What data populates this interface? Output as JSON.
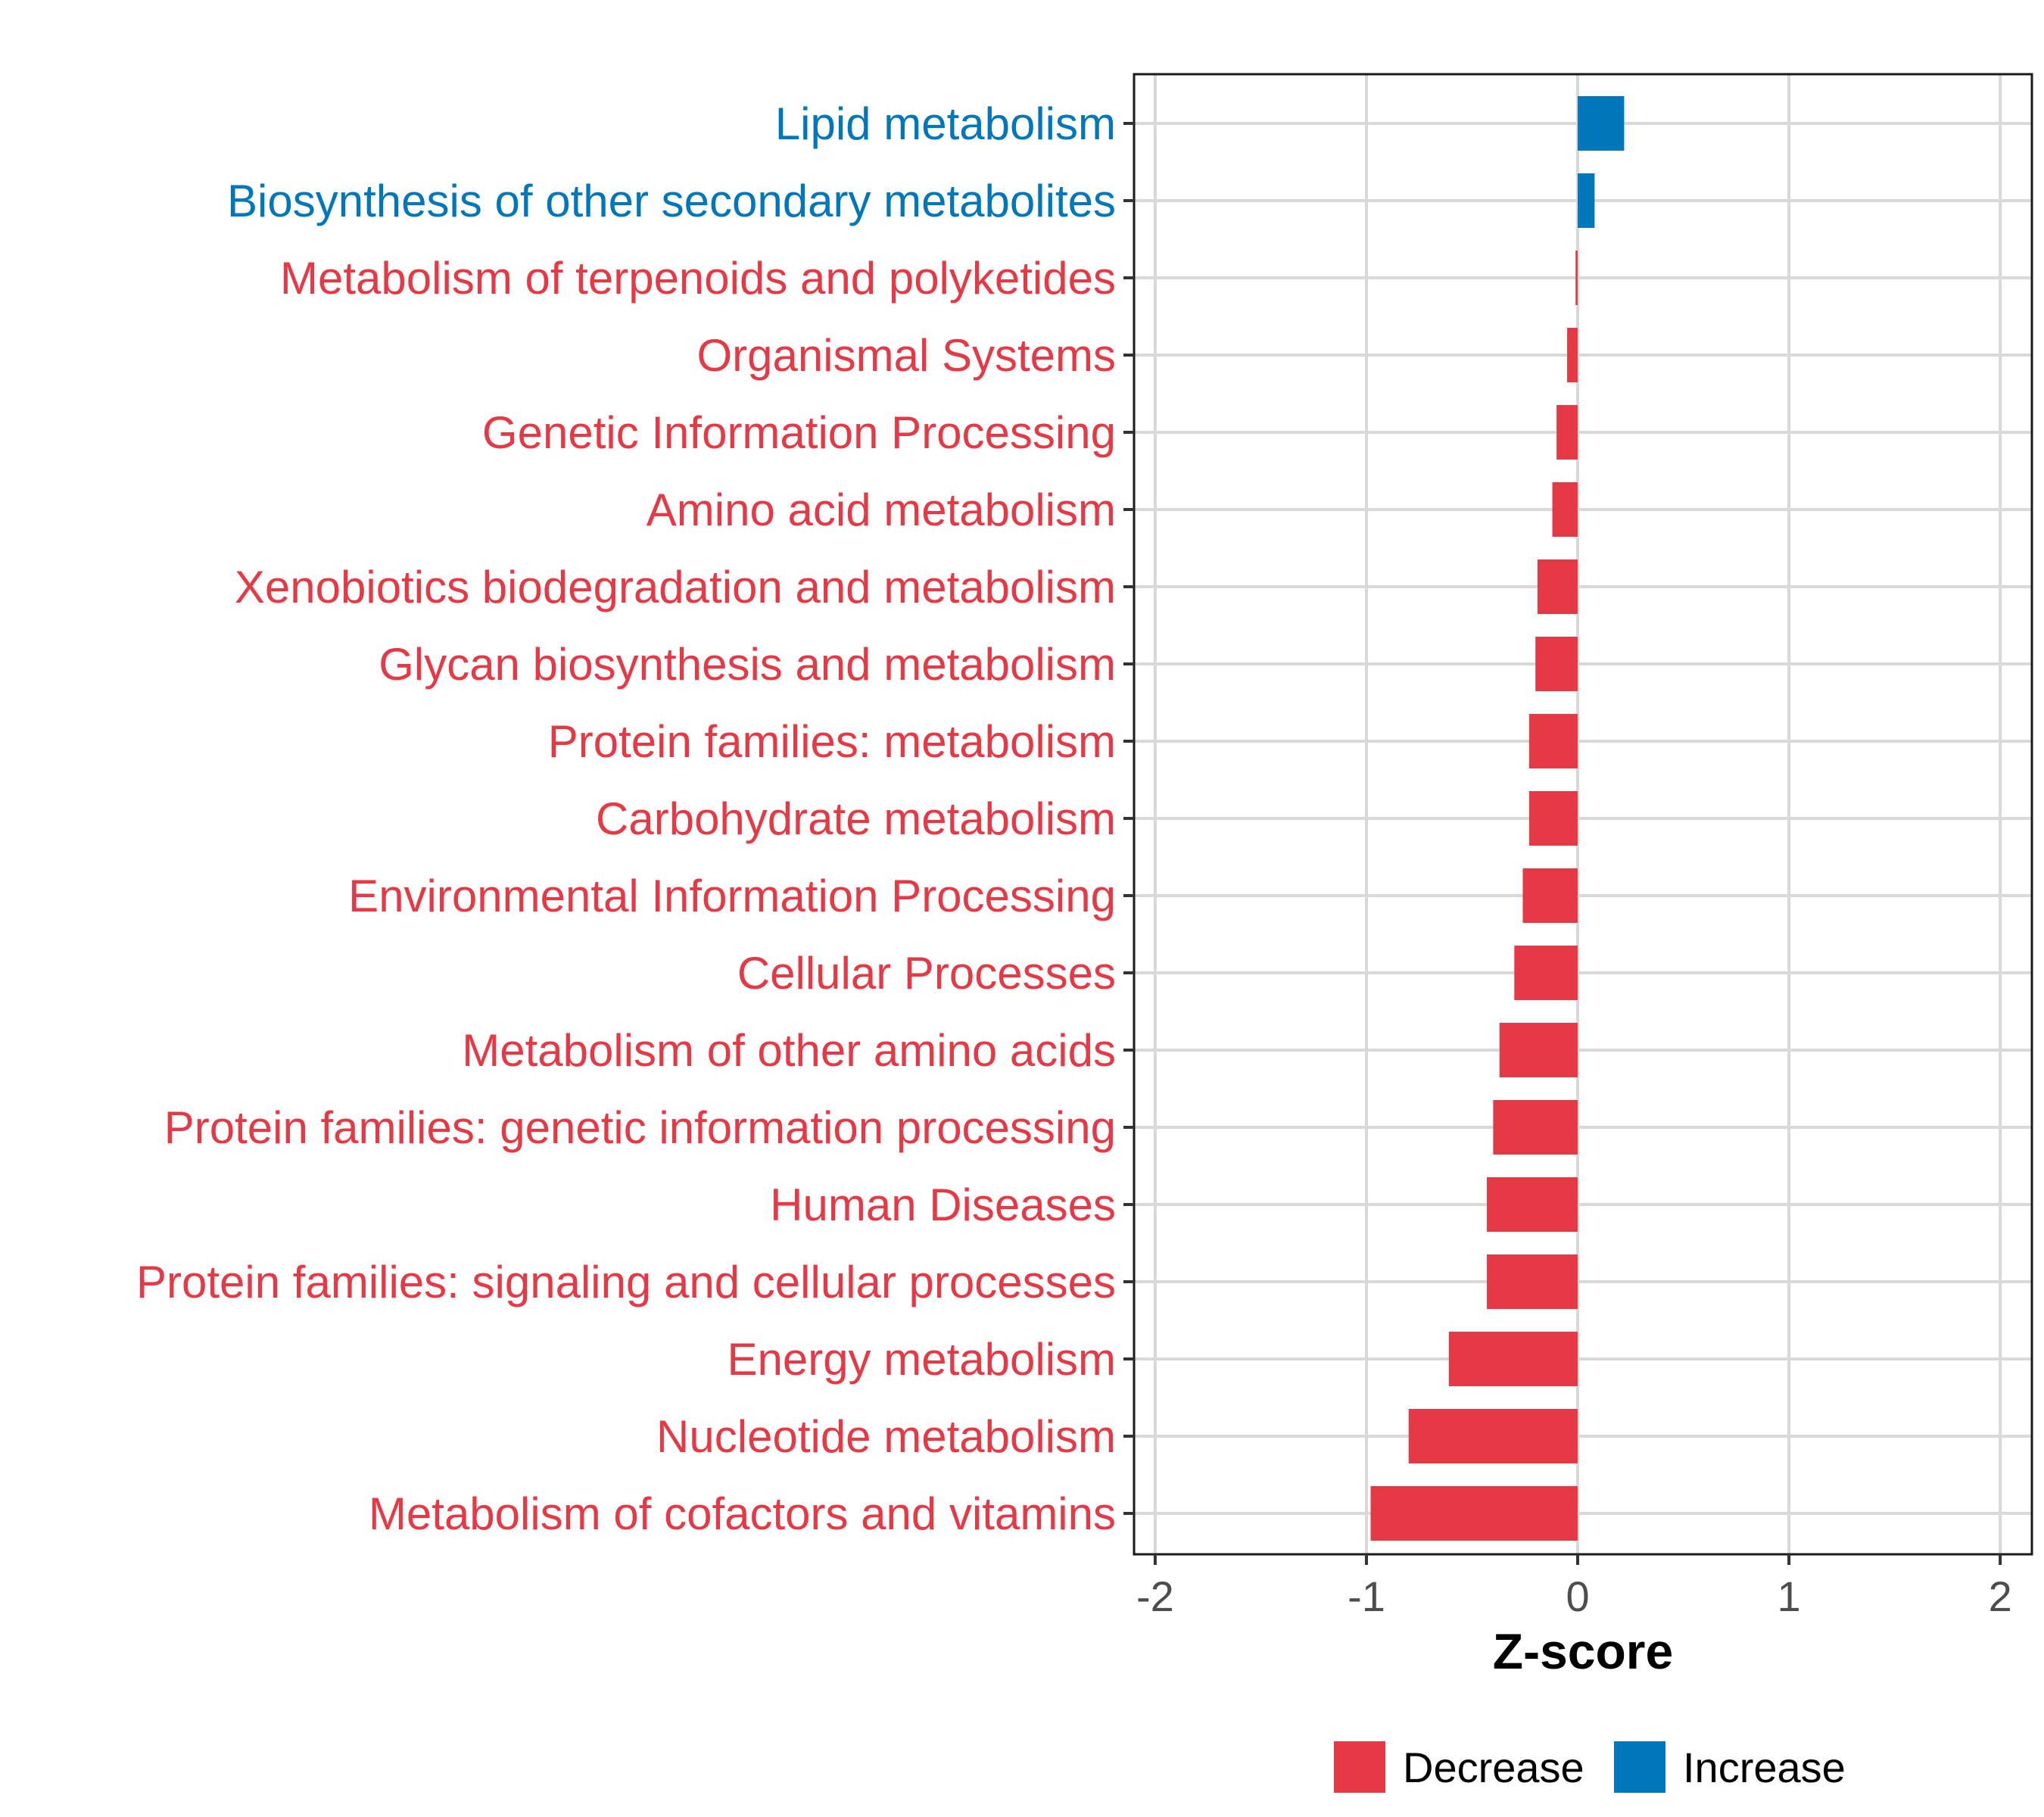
{
  "chart_data": {
    "type": "bar",
    "orientation": "horizontal",
    "title": "",
    "xlabel": "Z-score",
    "ylabel": "",
    "xlim": [
      -2.1,
      2.15
    ],
    "xticks": [
      -2,
      -1,
      0,
      1,
      2
    ],
    "xtick_labels": [
      "-2",
      "-1",
      "0",
      "1",
      "2"
    ],
    "grid": true,
    "legend_position": "bottom",
    "categories": [
      "Lipid metabolism",
      "Biosynthesis of other secondary metabolites",
      "Metabolism of terpenoids and polyketides",
      "Organismal Systems",
      "Genetic Information Processing",
      "Amino acid metabolism",
      "Xenobiotics biodegradation and metabolism",
      "Glycan biosynthesis and metabolism",
      "Protein families: metabolism",
      "Carbohydrate metabolism",
      "Environmental Information Processing",
      "Cellular Processes",
      "Metabolism of other amino acids",
      "Protein families: genetic information processing",
      "Human Diseases",
      "Protein families: signaling and cellular processes",
      "Energy metabolism",
      "Nucleotide metabolism",
      "Metabolism of cofactors and vitamins"
    ],
    "values": [
      0.22,
      0.08,
      -0.01,
      -0.05,
      -0.1,
      -0.12,
      -0.19,
      -0.2,
      -0.23,
      -0.23,
      -0.26,
      -0.3,
      -0.37,
      -0.4,
      -0.43,
      -0.43,
      -0.61,
      -0.8,
      -0.98
    ],
    "groups": [
      "Increase",
      "Increase",
      "Decrease",
      "Decrease",
      "Decrease",
      "Decrease",
      "Decrease",
      "Decrease",
      "Decrease",
      "Decrease",
      "Decrease",
      "Decrease",
      "Decrease",
      "Decrease",
      "Decrease",
      "Decrease",
      "Decrease",
      "Decrease",
      "Decrease"
    ],
    "legend": [
      {
        "name": "Decrease",
        "color": "#E63946"
      },
      {
        "name": "Increase",
        "color": "#0077BB"
      }
    ]
  }
}
